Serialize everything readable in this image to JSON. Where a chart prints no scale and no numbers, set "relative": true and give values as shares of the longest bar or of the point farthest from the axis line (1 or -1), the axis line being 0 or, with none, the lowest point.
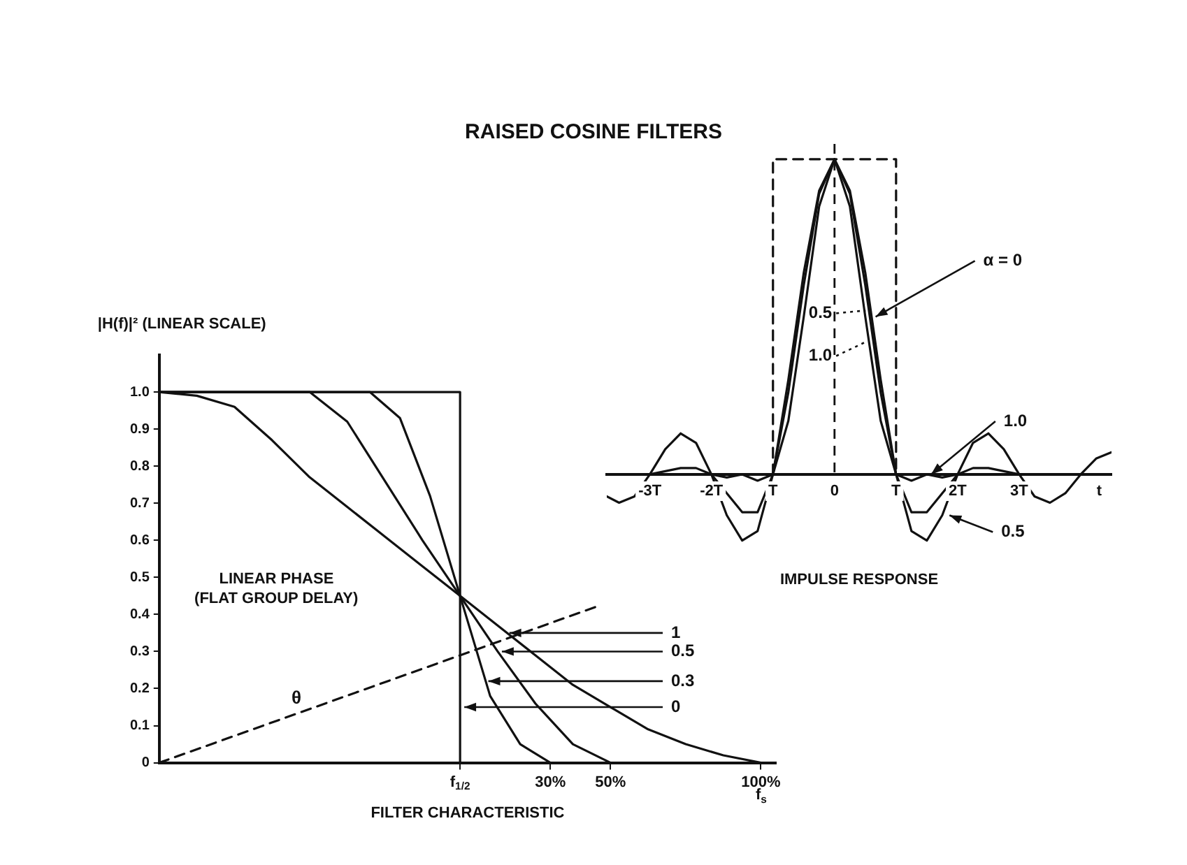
{
  "chart_data": [
    {
      "type": "line",
      "title": "RAISED COSINE FILTERS",
      "xlabel": "FILTER CHARACTERISTIC",
      "ylabel": "|H(f)|² (LINEAR SCALE)",
      "xlim": [
        -100,
        105
      ],
      "ylim": [
        0,
        1.1
      ],
      "xticks": [
        {
          "value": 0,
          "label": "f$_{1/2}$"
        },
        {
          "value": 30,
          "label": "30%"
        },
        {
          "value": 50,
          "label": "50%"
        },
        {
          "value": 100,
          "label": "100%"
        }
      ],
      "yticks": [
        0,
        0.1,
        0.2,
        0.3,
        0.4,
        0.5,
        0.6,
        0.7,
        0.8,
        0.9,
        {
          "value": 1,
          "label": "1.0"
        }
      ],
      "grid": false,
      "legend": false,
      "marker": "none",
      "series": [
        {
          "color": "#111111",
          "x": [
            -100,
            -87.5,
            -75,
            -62.5,
            -50,
            -37.5,
            -25,
            -12.5,
            0,
            12.5,
            25,
            37.5,
            50,
            62.5,
            75,
            87.5,
            100
          ],
          "values": [
            1,
            0.99,
            0.96,
            0.87,
            0.77,
            0.69,
            0.61,
            0.53,
            0.45,
            0.37,
            0.29,
            0.21,
            0.15,
            0.09,
            0.05,
            0.02,
            0
          ]
        },
        {
          "color": "#111111",
          "x": [
            -100,
            -50,
            -37.5,
            -25,
            -12.5,
            0,
            12.5,
            25,
            37.5,
            50
          ],
          "values": [
            1,
            1,
            0.92,
            0.76,
            0.6,
            0.45,
            0.3,
            0.16,
            0.05,
            0
          ]
        },
        {
          "color": "#111111",
          "x": [
            -100,
            -30,
            -20,
            -10,
            0,
            10,
            20,
            30
          ],
          "values": [
            1,
            1,
            0.93,
            0.72,
            0.45,
            0.18,
            0.05,
            0
          ]
        },
        {
          "color": "#111111",
          "x": [
            -100,
            0,
            0
          ],
          "values": [
            1,
            1,
            0
          ]
        },
        {
          "color": "#111111",
          "line_style": "dashed",
          "x": [
            -100,
            45
          ],
          "values": [
            0,
            0.42
          ]
        }
      ],
      "annotations": [
        "LINEAR PHASE\n(FLAT GROUP DELAY)",
        {
          "text": "θ",
          "x": -50,
          "y": 0.15
        },
        {
          "text": "1",
          "x": 15,
          "y": 0.35
        },
        {
          "text": "0.5",
          "x": 12.5,
          "y": 0.3
        },
        {
          "text": "0.3",
          "x": 8,
          "y": 0.22
        },
        {
          "text": "0",
          "x": 0,
          "y": 0.15
        },
        "f$_{s}$"
      ]
    },
    {
      "type": "line",
      "relative": true,
      "xlabel": "IMPULSE RESPONSE",
      "xlim": [
        -3.7,
        4.5
      ],
      "xticks": [
        {
          "value": -3,
          "label": "-3T"
        },
        {
          "value": -2,
          "label": "-2T"
        },
        {
          "value": -1,
          "label": "T"
        },
        0,
        {
          "value": 1,
          "label": "T"
        },
        {
          "value": 2,
          "label": "2T"
        },
        {
          "value": 3,
          "label": "3T"
        },
        {
          "value": 4.3,
          "label": "t"
        }
      ],
      "tick_labels": "x",
      "grid": false,
      "legend": false,
      "marker": "none",
      "ref_lines": [
        {
          "axis": "x",
          "value": 0,
          "line_style": "dashed"
        }
      ],
      "x": [
        -3.7,
        -3.5,
        -3.25,
        -3,
        -2.75,
        -2.5,
        -2.25,
        -2,
        -1.75,
        -1.5,
        -1.25,
        -1,
        -0.75,
        -0.5,
        -0.25,
        0,
        0.25,
        0.5,
        0.75,
        1,
        1.25,
        1.5,
        1.75,
        2,
        2.25,
        2.5,
        2.75,
        3,
        3.25,
        3.5,
        3.75,
        4,
        4.25,
        4.5
      ],
      "series": [
        {
          "color": "#111111",
          "values": [
            -0.07,
            -0.09,
            -0.07,
            0,
            0.08,
            0.13,
            0.1,
            0,
            -0.13,
            -0.21,
            -0.18,
            0,
            0.3,
            0.64,
            0.9,
            1,
            0.9,
            0.64,
            0.3,
            0,
            -0.18,
            -0.21,
            -0.13,
            0,
            0.1,
            0.13,
            0.08,
            0,
            -0.07,
            -0.09,
            -0.06,
            0,
            0.05,
            0.07
          ]
        },
        {
          "color": "#111111",
          "values": [
            0,
            0,
            0,
            0,
            0.01,
            0.02,
            0.02,
            0,
            -0.06,
            -0.12,
            -0.12,
            0,
            0.26,
            0.6,
            0.89,
            1,
            0.89,
            0.6,
            0.26,
            0,
            -0.12,
            -0.12,
            -0.06,
            0,
            0.02,
            0.02,
            0.01,
            0,
            0,
            0,
            0,
            0,
            0,
            0
          ]
        },
        {
          "color": "#111111",
          "values": [
            0,
            0,
            0,
            0,
            0,
            0,
            0,
            0,
            -0.01,
            0,
            -0.02,
            0,
            0.17,
            0.5,
            0.85,
            1,
            0.85,
            0.5,
            0.17,
            0,
            -0.02,
            0,
            -0.01,
            0,
            0,
            0,
            0,
            0,
            0,
            0,
            0,
            0,
            0,
            0
          ]
        },
        {
          "color": "#111111",
          "line_style": "dashed",
          "x": [
            -1,
            -1,
            1,
            1
          ],
          "values": [
            0,
            1,
            1,
            0
          ]
        }
      ],
      "annotations": [
        {
          "text": "α = 0",
          "x": 0.6,
          "y": 0.5
        },
        {
          "text": "0.5",
          "x": 0.55,
          "y": 0.52
        },
        {
          "text": "1.0",
          "x": 0.55,
          "y": 0.42
        },
        {
          "text": "1.0",
          "x": 1.5,
          "y": 0
        },
        {
          "text": "0.5",
          "x": 1.8,
          "y": -0.13
        }
      ]
    }
  ]
}
